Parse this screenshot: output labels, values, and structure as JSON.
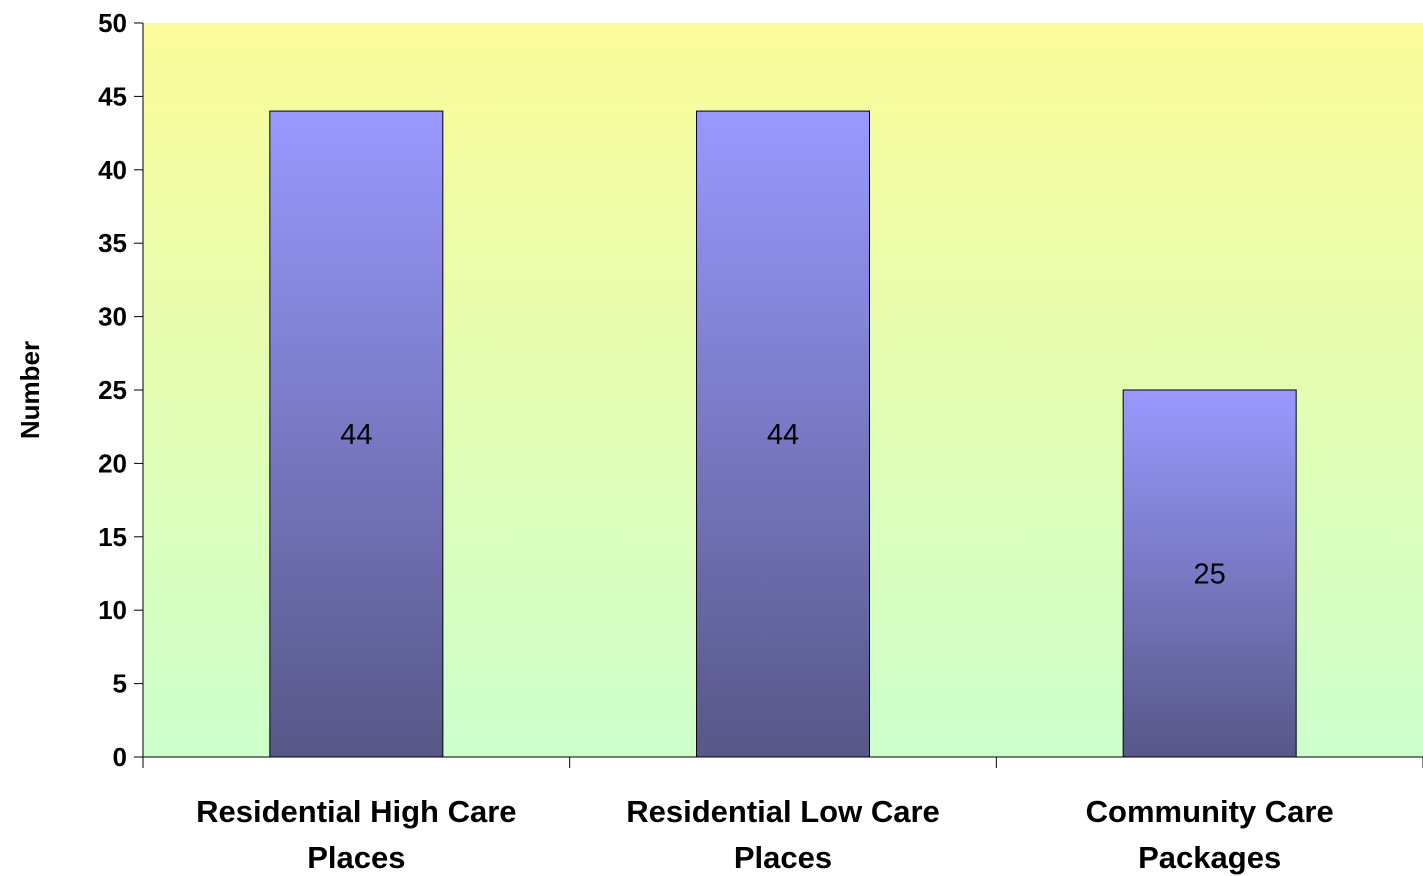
{
  "chart_data": {
    "type": "bar",
    "ylabel": "Number",
    "ylim": [
      0,
      50
    ],
    "ytick_step": 5,
    "categories": [
      [
        "Residential High Care",
        "Places"
      ],
      [
        "Residential Low Care",
        "Places"
      ],
      [
        "Community Care",
        "Packages"
      ]
    ],
    "values": [
      44,
      44,
      25
    ],
    "data_labels": [
      "44",
      "44",
      "25"
    ],
    "grid": false,
    "legend": "none",
    "colors": {
      "bar_top": "#9999ff",
      "bar_bottom": "#575788",
      "plot_top": "#fbfb99",
      "plot_bottom": "#ccffcc",
      "axis": "#000000"
    }
  }
}
